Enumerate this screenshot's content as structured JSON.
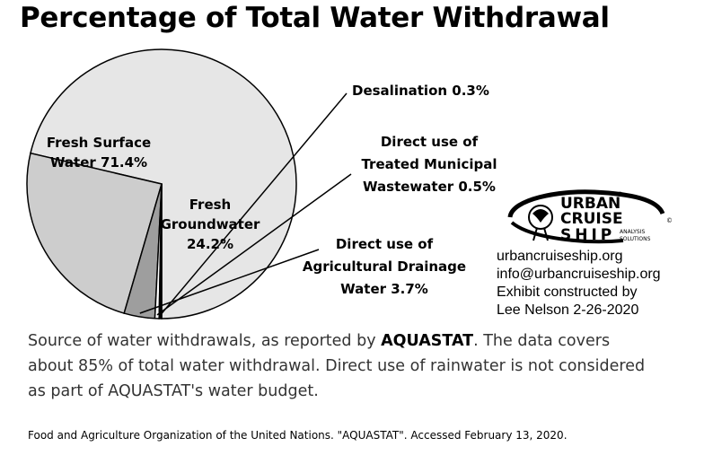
{
  "chart_data": {
    "type": "pie",
    "title": "Percentage of Total Water Withdrawal",
    "slices": [
      {
        "label_lines": [
          "Fresh Surface",
          "Water 71.4%"
        ],
        "value": 71.4,
        "color": "#e6e6e6"
      },
      {
        "label_lines": [
          "Fresh",
          "Groundwater",
          "24.2%"
        ],
        "value": 24.2,
        "color": "#cdcdcd"
      },
      {
        "label_lines": [
          "Direct use of",
          "Agricultural Drainage",
          "Water 3.7%"
        ],
        "value": 3.7,
        "color": "#9e9e9e"
      },
      {
        "label_lines": [
          "Direct use of",
          "Treated Municipal",
          "Wastewater 0.5%"
        ],
        "value": 0.5,
        "color": "#ffffff"
      },
      {
        "label_lines": [
          "Desalination 0.3%"
        ],
        "value": 0.3,
        "color": "#000000"
      }
    ]
  },
  "logo": {
    "word1": "URBAN",
    "word2": "CRUISE",
    "word3": "SHIP",
    "sub1": "ANALYSIS",
    "sub2": "SOLUTIONS",
    "mark": "®",
    "copy": "©"
  },
  "info": {
    "website": "urbancruiseship.org",
    "email": "info@urbancruiseship.org",
    "credit_line1": "Exhibit constructed by",
    "credit_line2": "Lee Nelson 2-26-2020"
  },
  "description": {
    "part1": "Source of water withdrawals, as reported by ",
    "bold": "AQUASTAT",
    "part2": ". The data covers about 85% of total water withdrawal. Direct use of rainwater is not considered as part of AQUASTAT's water budget."
  },
  "source": "Food and Agriculture Organization of the United Nations. \"AQUASTAT\". Accessed February 13, 2020."
}
